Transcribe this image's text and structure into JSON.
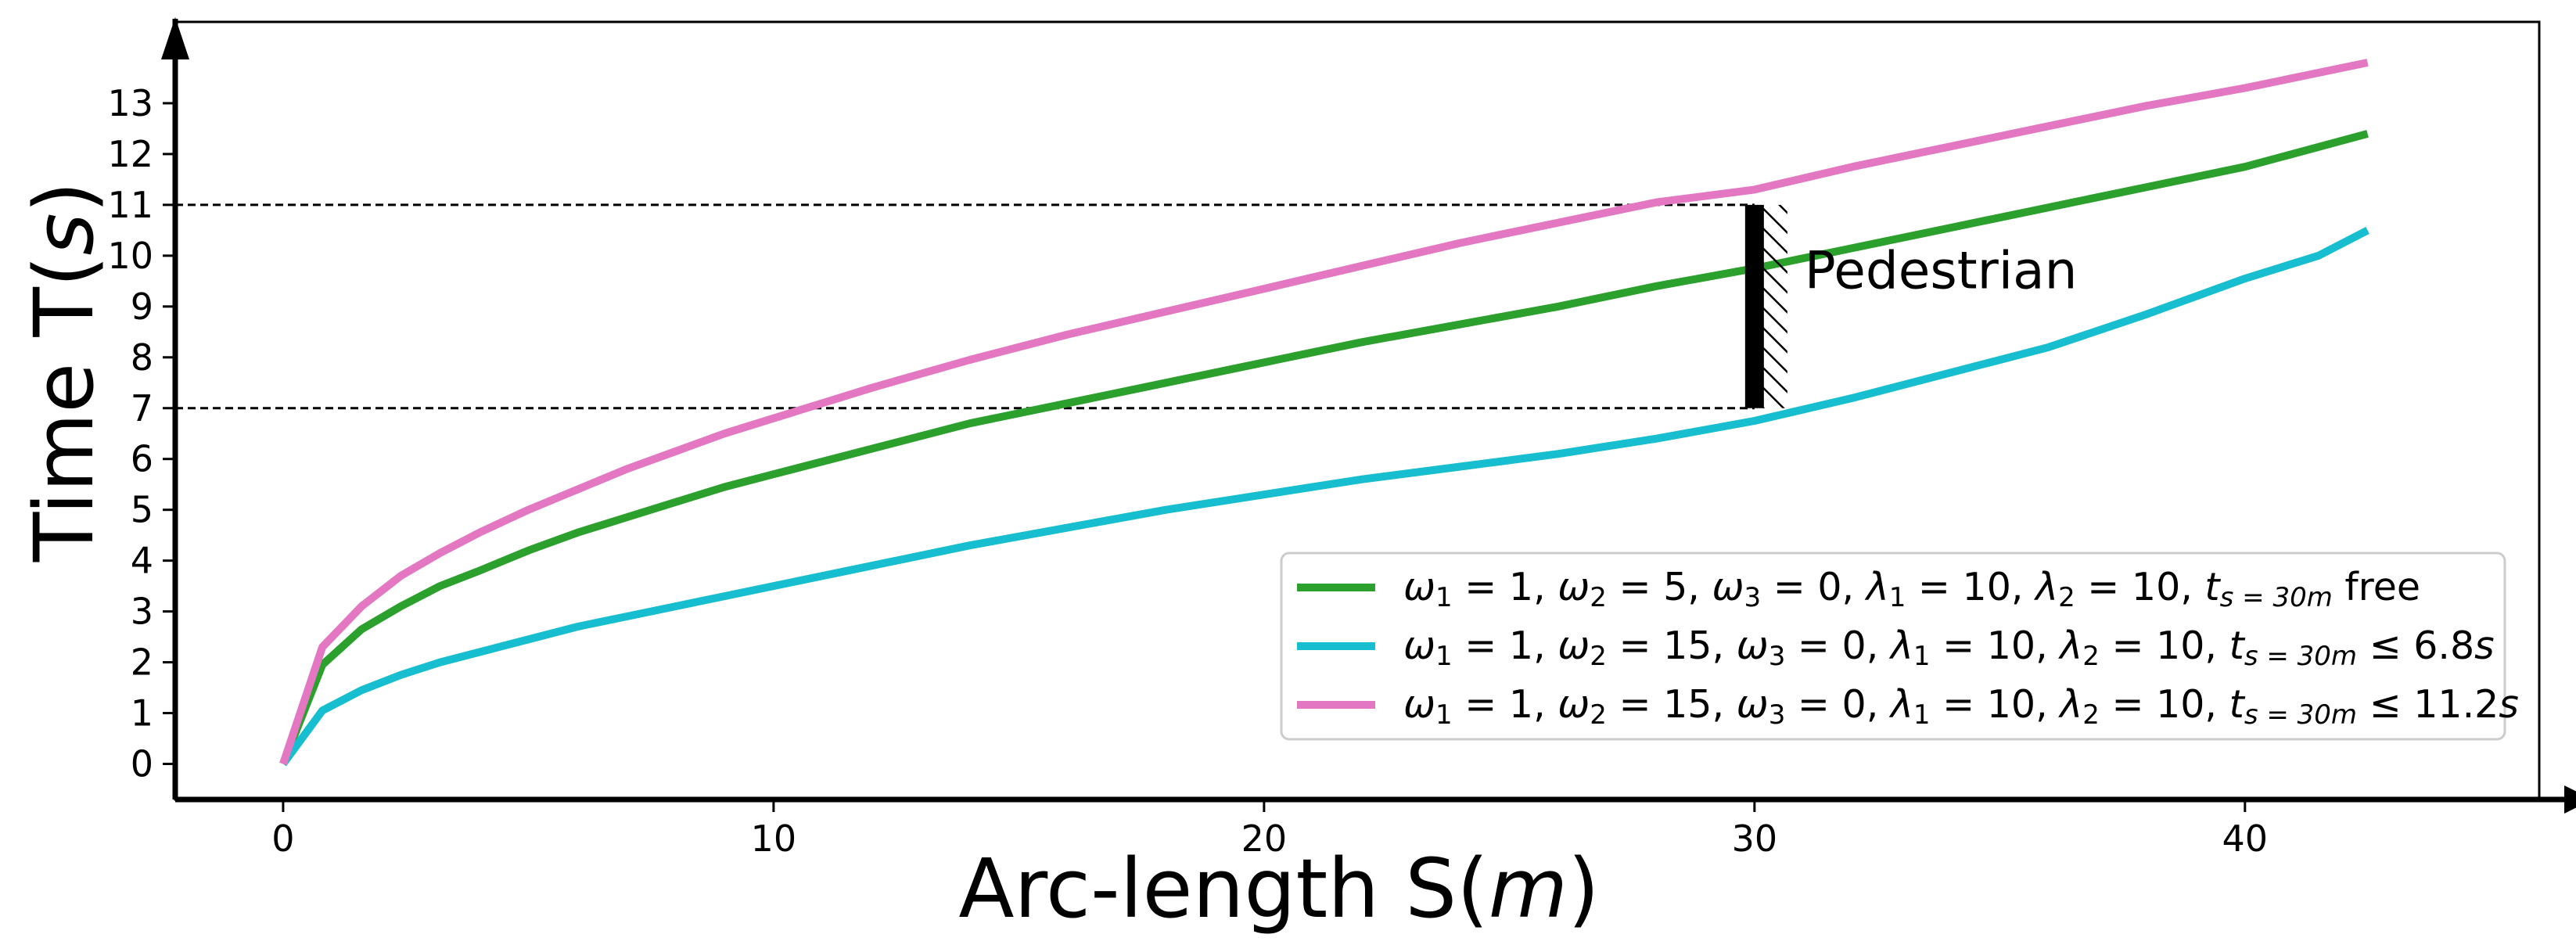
{
  "chart_data": {
    "type": "line",
    "xlabel": {
      "prefix": "Arc-length S(",
      "var": "m",
      "suffix": ")"
    },
    "ylabel": {
      "prefix": "Time T(",
      "var": "s",
      "suffix": ")"
    },
    "xlim": [
      -2.2,
      46
    ],
    "ylim": [
      -0.7,
      14.6
    ],
    "xticks": [
      0,
      10,
      20,
      30,
      40
    ],
    "yticks": [
      0,
      1,
      2,
      3,
      4,
      5,
      6,
      7,
      8,
      9,
      10,
      11,
      12,
      13
    ],
    "grid": false,
    "legend_position": "lower-right",
    "series": [
      {
        "name": "ω1=1, ω2=5, ω3=0, λ1=10, λ2=10, t_{s=30m} free",
        "color": "#2ca02c",
        "legend_parts": [
          {
            "t": "ω",
            "it": true
          },
          {
            "t": "1",
            "sub": true
          },
          {
            "t": " = 1, "
          },
          {
            "t": "ω",
            "it": true
          },
          {
            "t": "2",
            "sub": true
          },
          {
            "t": " = 5, "
          },
          {
            "t": "ω",
            "it": true
          },
          {
            "t": "3",
            "sub": true
          },
          {
            "t": " = 0, "
          },
          {
            "t": "λ",
            "it": true
          },
          {
            "t": "1",
            "sub": true
          },
          {
            "t": " = 10, "
          },
          {
            "t": "λ",
            "it": true
          },
          {
            "t": "2",
            "sub": true
          },
          {
            "t": " = 10, "
          },
          {
            "t": "t",
            "it": true
          },
          {
            "t": "s = 30m",
            "sub": true,
            "it": true
          },
          {
            "t": " free"
          }
        ],
        "x": [
          0,
          0.8,
          1.6,
          2.4,
          3.2,
          4,
          5,
          6,
          7,
          8,
          9,
          10,
          12,
          14,
          16,
          18,
          20,
          22,
          24,
          26,
          28,
          30,
          32,
          34,
          36,
          38,
          40,
          42.5
        ],
        "y": [
          0,
          1.95,
          2.65,
          3.1,
          3.5,
          3.8,
          4.2,
          4.55,
          4.85,
          5.15,
          5.45,
          5.7,
          6.2,
          6.7,
          7.1,
          7.5,
          7.9,
          8.3,
          8.65,
          9.0,
          9.4,
          9.75,
          10.15,
          10.55,
          10.95,
          11.35,
          11.75,
          12.4
        ]
      },
      {
        "name": "ω1=1, ω2=15, ω3=0, λ1=10, λ2=10, t_{s=30m} ≤ 6.8s",
        "color": "#17becf",
        "legend_parts": [
          {
            "t": "ω",
            "it": true
          },
          {
            "t": "1",
            "sub": true
          },
          {
            "t": " = 1, "
          },
          {
            "t": "ω",
            "it": true
          },
          {
            "t": "2",
            "sub": true
          },
          {
            "t": " = 15, "
          },
          {
            "t": "ω",
            "it": true
          },
          {
            "t": "3",
            "sub": true
          },
          {
            "t": " = 0, "
          },
          {
            "t": "λ",
            "it": true
          },
          {
            "t": "1",
            "sub": true
          },
          {
            "t": " = 10, "
          },
          {
            "t": "λ",
            "it": true
          },
          {
            "t": "2",
            "sub": true
          },
          {
            "t": " = 10, "
          },
          {
            "t": "t",
            "it": true
          },
          {
            "t": "s = 30m",
            "sub": true,
            "it": true
          },
          {
            "t": " ≤ 6.8"
          },
          {
            "t": "s",
            "it": true
          }
        ],
        "x": [
          0,
          0.8,
          1.6,
          2.4,
          3.2,
          4,
          5,
          6,
          7,
          8,
          9,
          10,
          12,
          14,
          16,
          18,
          20,
          22,
          24,
          26,
          28,
          30,
          32,
          34,
          36,
          38,
          40,
          41.5,
          42.5
        ],
        "y": [
          0,
          1.05,
          1.45,
          1.75,
          2.0,
          2.2,
          2.45,
          2.7,
          2.9,
          3.1,
          3.3,
          3.5,
          3.9,
          4.3,
          4.65,
          5.0,
          5.3,
          5.6,
          5.85,
          6.1,
          6.4,
          6.75,
          7.2,
          7.7,
          8.2,
          8.85,
          9.55,
          10.0,
          10.5
        ]
      },
      {
        "name": "ω1=1, ω2=15, ω3=0, λ1=10, λ2=10, t_{s=30m} ≤ 11.2s",
        "color": "#e377c2",
        "legend_parts": [
          {
            "t": "ω",
            "it": true
          },
          {
            "t": "1",
            "sub": true
          },
          {
            "t": " = 1, "
          },
          {
            "t": "ω",
            "it": true
          },
          {
            "t": "2",
            "sub": true
          },
          {
            "t": " = 15, "
          },
          {
            "t": "ω",
            "it": true
          },
          {
            "t": "3",
            "sub": true
          },
          {
            "t": " = 0, "
          },
          {
            "t": "λ",
            "it": true
          },
          {
            "t": "1",
            "sub": true
          },
          {
            "t": " = 10, "
          },
          {
            "t": "λ",
            "it": true
          },
          {
            "t": "2",
            "sub": true
          },
          {
            "t": " = 10, "
          },
          {
            "t": "t",
            "it": true
          },
          {
            "t": "s = 30m",
            "sub": true,
            "it": true
          },
          {
            "t": " ≤ 11.2"
          },
          {
            "t": "s",
            "it": true
          }
        ],
        "x": [
          0,
          0.8,
          1.6,
          2.4,
          3.2,
          4,
          5,
          6,
          7,
          8,
          9,
          10,
          12,
          14,
          16,
          18,
          20,
          22,
          24,
          26,
          28,
          30,
          32,
          34,
          36,
          38,
          40,
          42.5
        ],
        "y": [
          0,
          2.3,
          3.1,
          3.7,
          4.15,
          4.55,
          5.0,
          5.4,
          5.8,
          6.15,
          6.5,
          6.8,
          7.4,
          7.95,
          8.45,
          8.9,
          9.35,
          9.8,
          10.25,
          10.65,
          11.05,
          11.3,
          11.75,
          12.15,
          12.55,
          12.95,
          13.3,
          13.8
        ]
      }
    ],
    "obstacle": {
      "label": "Pedestrian",
      "x": 30,
      "y_range": [
        7,
        11
      ]
    },
    "reference_lines": [
      {
        "y": 11,
        "style": "dashed"
      },
      {
        "y": 7,
        "style": "dashed"
      }
    ]
  }
}
